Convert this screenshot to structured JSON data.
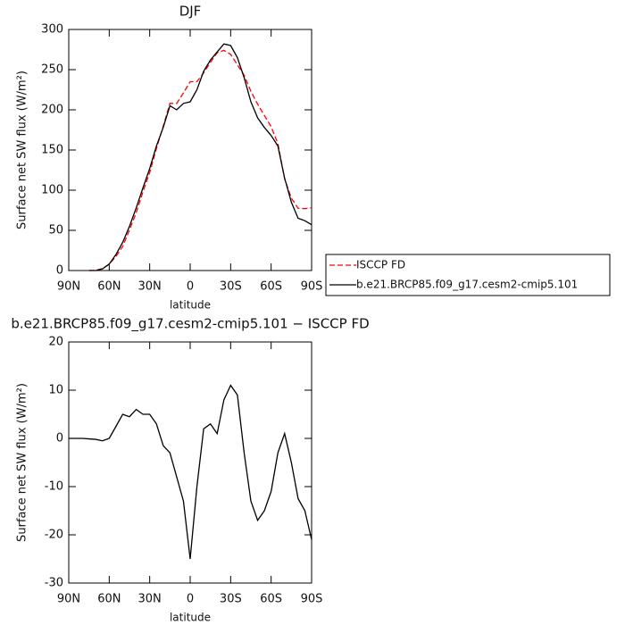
{
  "chart_data": [
    {
      "type": "line",
      "title": "DJF",
      "xlabel": "latitude",
      "ylabel": "Surface net SW flux (W/m²)",
      "x": [
        90,
        85,
        80,
        75,
        70,
        65,
        60,
        55,
        50,
        45,
        40,
        35,
        30,
        25,
        20,
        15,
        10,
        5,
        0,
        -5,
        -10,
        -15,
        -20,
        -25,
        -30,
        -35,
        -40,
        -45,
        -50,
        -55,
        -60,
        -65,
        -70,
        -75,
        -80,
        -85,
        -90
      ],
      "xlim": [
        90,
        -90
      ],
      "xticks": [
        {
          "value": 90,
          "label": "90N"
        },
        {
          "value": 60,
          "label": "60N"
        },
        {
          "value": 30,
          "label": "30N"
        },
        0,
        {
          "value": -30,
          "label": "30S"
        },
        {
          "value": -60,
          "label": "60S"
        },
        {
          "value": -90,
          "label": "90S"
        }
      ],
      "ylim": [
        0,
        300
      ],
      "yticks": [
        0,
        50,
        100,
        150,
        200,
        250,
        300
      ],
      "legend": "right",
      "series": [
        {
          "name": "ISCCP FD",
          "color": "#ff0000",
          "dashed": true,
          "values": [
            null,
            null,
            null,
            0.1,
            0.2,
            2.5,
            8,
            17.5,
            30,
            50.5,
            72,
            98,
            122,
            152,
            179.5,
            208,
            208,
            221,
            235,
            235,
            246,
            259,
            271,
            274,
            269,
            256,
            243,
            223,
            207,
            193,
            179,
            158,
            114,
            90,
            77.5,
            77,
            78
          ]
        },
        {
          "name": "b.e21.BRCP85.f09_g17.cesm2-cmip5.101",
          "color": "#000000",
          "dashed": false,
          "values": [
            null,
            null,
            null,
            0,
            0,
            2,
            8,
            20,
            35,
            55,
            78,
            103,
            127,
            155,
            178,
            205,
            200,
            208,
            210,
            225,
            248,
            262,
            272,
            282,
            280,
            265,
            240,
            210,
            190,
            178,
            168,
            155,
            115,
            85,
            65,
            62,
            57
          ]
        }
      ]
    },
    {
      "type": "line",
      "title": "b.e21.BRCP85.f09_g17.cesm2-cmip5.101 − ISCCP FD",
      "xlabel": "latitude",
      "ylabel": "Surface net SW flux (W/m²)",
      "x": [
        90,
        85,
        80,
        75,
        70,
        65,
        60,
        55,
        50,
        45,
        40,
        35,
        30,
        25,
        20,
        15,
        10,
        5,
        0,
        -5,
        -10,
        -15,
        -20,
        -25,
        -30,
        -35,
        -40,
        -45,
        -50,
        -55,
        -60,
        -65,
        -70,
        -75,
        -80,
        -85,
        -90
      ],
      "xlim": [
        90,
        -90
      ],
      "xticks": [
        {
          "value": 90,
          "label": "90N"
        },
        {
          "value": 60,
          "label": "60N"
        },
        {
          "value": 30,
          "label": "30N"
        },
        0,
        {
          "value": -30,
          "label": "30S"
        },
        {
          "value": -60,
          "label": "60S"
        },
        {
          "value": -90,
          "label": "90S"
        }
      ],
      "ylim": [
        -30,
        20
      ],
      "yticks": [
        -30,
        -20,
        -10,
        0,
        10,
        20
      ],
      "series": [
        {
          "color": "#000000",
          "dashed": false,
          "values": [
            0,
            0,
            0,
            -0.1,
            -0.2,
            -0.5,
            0,
            2.5,
            5,
            4.5,
            6,
            5,
            5,
            3,
            -1.5,
            -3,
            -8,
            -13,
            -25,
            -10,
            2,
            3,
            1,
            8,
            11,
            9,
            -3,
            -13,
            -17,
            -15,
            -11,
            -3,
            1,
            -5,
            -12.5,
            -15,
            -21
          ]
        }
      ]
    }
  ]
}
